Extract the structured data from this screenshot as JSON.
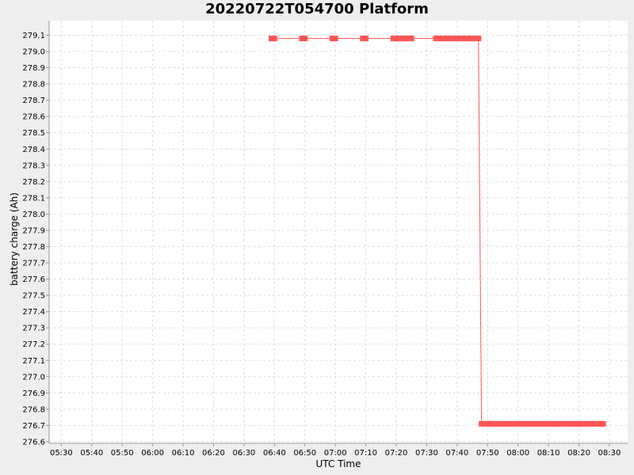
{
  "chart_data": {
    "type": "line",
    "title": "20220722T054700 Platform",
    "xlabel": "UTC Time",
    "ylabel": "battery charge (Ah)",
    "xlim": [
      "05:26",
      "08:36"
    ],
    "ylim": [
      276.59,
      279.19
    ],
    "x_ticks": [
      "05:30",
      "05:40",
      "05:50",
      "06:00",
      "06:10",
      "06:20",
      "06:30",
      "06:40",
      "06:50",
      "07:00",
      "07:10",
      "07:20",
      "07:30",
      "07:40",
      "07:50",
      "08:00",
      "08:10",
      "08:20",
      "08:30"
    ],
    "y_ticks": [
      "276.6",
      "276.7",
      "276.8",
      "276.9",
      "277.0",
      "277.1",
      "277.2",
      "277.3",
      "277.4",
      "277.5",
      "277.6",
      "277.7",
      "277.8",
      "277.9",
      "278.0",
      "278.1",
      "278.2",
      "278.3",
      "278.4",
      "278.5",
      "278.6",
      "278.7",
      "278.8",
      "278.9",
      "279.0",
      "279.1"
    ],
    "grid": true,
    "legend": "none",
    "series": [
      {
        "color": "#ff5555",
        "x": [
          "06:39",
          "06:40",
          "06:49",
          "06:50",
          "06:59",
          "07:00",
          "07:09",
          "07:10",
          "07:19",
          "07:20",
          "07:21",
          "07:22",
          "07:23",
          "07:24",
          "07:25",
          "07:33",
          "07:34",
          "07:35",
          "07:36",
          "07:37",
          "07:38",
          "07:39",
          "07:40",
          "07:41",
          "07:42",
          "07:43",
          "07:44",
          "07:45",
          "07:46",
          "07:47",
          "07:48",
          "07:49",
          "07:50",
          "07:51",
          "07:52",
          "07:53",
          "07:54",
          "07:55",
          "07:56",
          "07:57",
          "07:58",
          "07:59",
          "08:00",
          "08:01",
          "08:02",
          "08:03",
          "08:04",
          "08:05",
          "08:06",
          "08:07",
          "08:08",
          "08:09",
          "08:10",
          "08:11",
          "08:12",
          "08:13",
          "08:14",
          "08:15",
          "08:16",
          "08:17",
          "08:18",
          "08:19",
          "08:20",
          "08:21",
          "08:22",
          "08:23",
          "08:24",
          "08:25",
          "08:26",
          "08:27",
          "08:28"
        ],
        "y": [
          279.08,
          279.08,
          279.08,
          279.08,
          279.08,
          279.08,
          279.08,
          279.08,
          279.08,
          279.08,
          279.08,
          279.08,
          279.08,
          279.08,
          279.08,
          279.08,
          279.08,
          279.08,
          279.08,
          279.08,
          279.08,
          279.08,
          279.08,
          279.08,
          279.08,
          279.08,
          279.08,
          279.08,
          279.08,
          279.08,
          276.71,
          276.71,
          276.71,
          276.71,
          276.71,
          276.71,
          276.71,
          276.71,
          276.71,
          276.71,
          276.71,
          276.71,
          276.71,
          276.71,
          276.71,
          276.71,
          276.71,
          276.71,
          276.71,
          276.71,
          276.71,
          276.71,
          276.71,
          276.71,
          276.71,
          276.71,
          276.71,
          276.71,
          276.71,
          276.71,
          276.71,
          276.71,
          276.71,
          276.71,
          276.71,
          276.71,
          276.71,
          276.71,
          276.71,
          276.71,
          276.71
        ]
      }
    ]
  }
}
